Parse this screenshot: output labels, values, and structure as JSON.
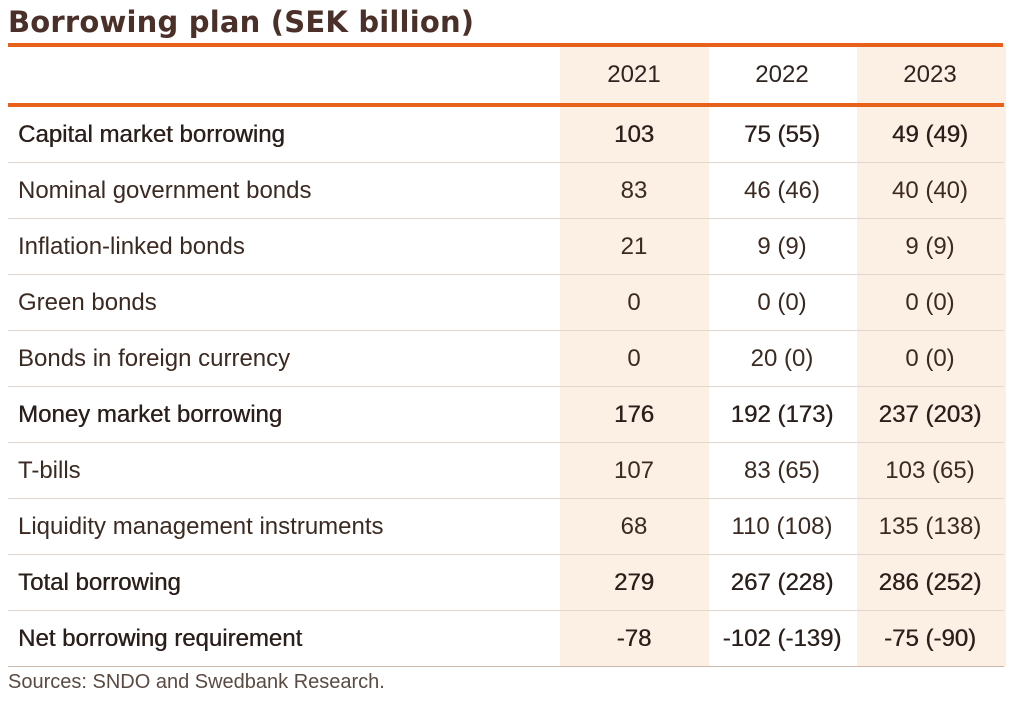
{
  "title": "Borrowing plan (SEK billion)",
  "columns": [
    "",
    "2021",
    "2022",
    "2023"
  ],
  "rows": [
    {
      "label": "Capital market borrowing",
      "values": [
        "103",
        "75 (55)",
        "49 (49)"
      ],
      "bold": true
    },
    {
      "label": "Nominal government bonds",
      "values": [
        "83",
        "46 (46)",
        "40 (40)"
      ],
      "bold": false
    },
    {
      "label": "Inflation-linked bonds",
      "values": [
        "21",
        "9 (9)",
        "9 (9)"
      ],
      "bold": false
    },
    {
      "label": "Green bonds",
      "values": [
        "0",
        "0 (0)",
        "0 (0)"
      ],
      "bold": false
    },
    {
      "label": "Bonds in foreign currency",
      "values": [
        "0",
        "20 (0)",
        "0 (0)"
      ],
      "bold": false
    },
    {
      "label": "Money market borrowing",
      "values": [
        "176",
        "192 (173)",
        "237 (203)"
      ],
      "bold": true
    },
    {
      "label": "T-bills",
      "values": [
        "107",
        "83 (65)",
        "103 (65)"
      ],
      "bold": false
    },
    {
      "label": "Liquidity management instruments",
      "values": [
        "68",
        "110 (108)",
        "135 (138)"
      ],
      "bold": false
    },
    {
      "label": "Total borrowing",
      "values": [
        "279",
        "267 (228)",
        "286 (252)"
      ],
      "bold": true
    },
    {
      "label": "Net borrowing requirement",
      "values": [
        "-78",
        "-102 (-139)",
        "-75 (-90)"
      ],
      "bold": true
    }
  ],
  "source": "Sources: SNDO and Swedbank Research.",
  "colors": {
    "accent": "#e8611a",
    "shade": "#fcefe4",
    "text": "#3b2a22"
  }
}
